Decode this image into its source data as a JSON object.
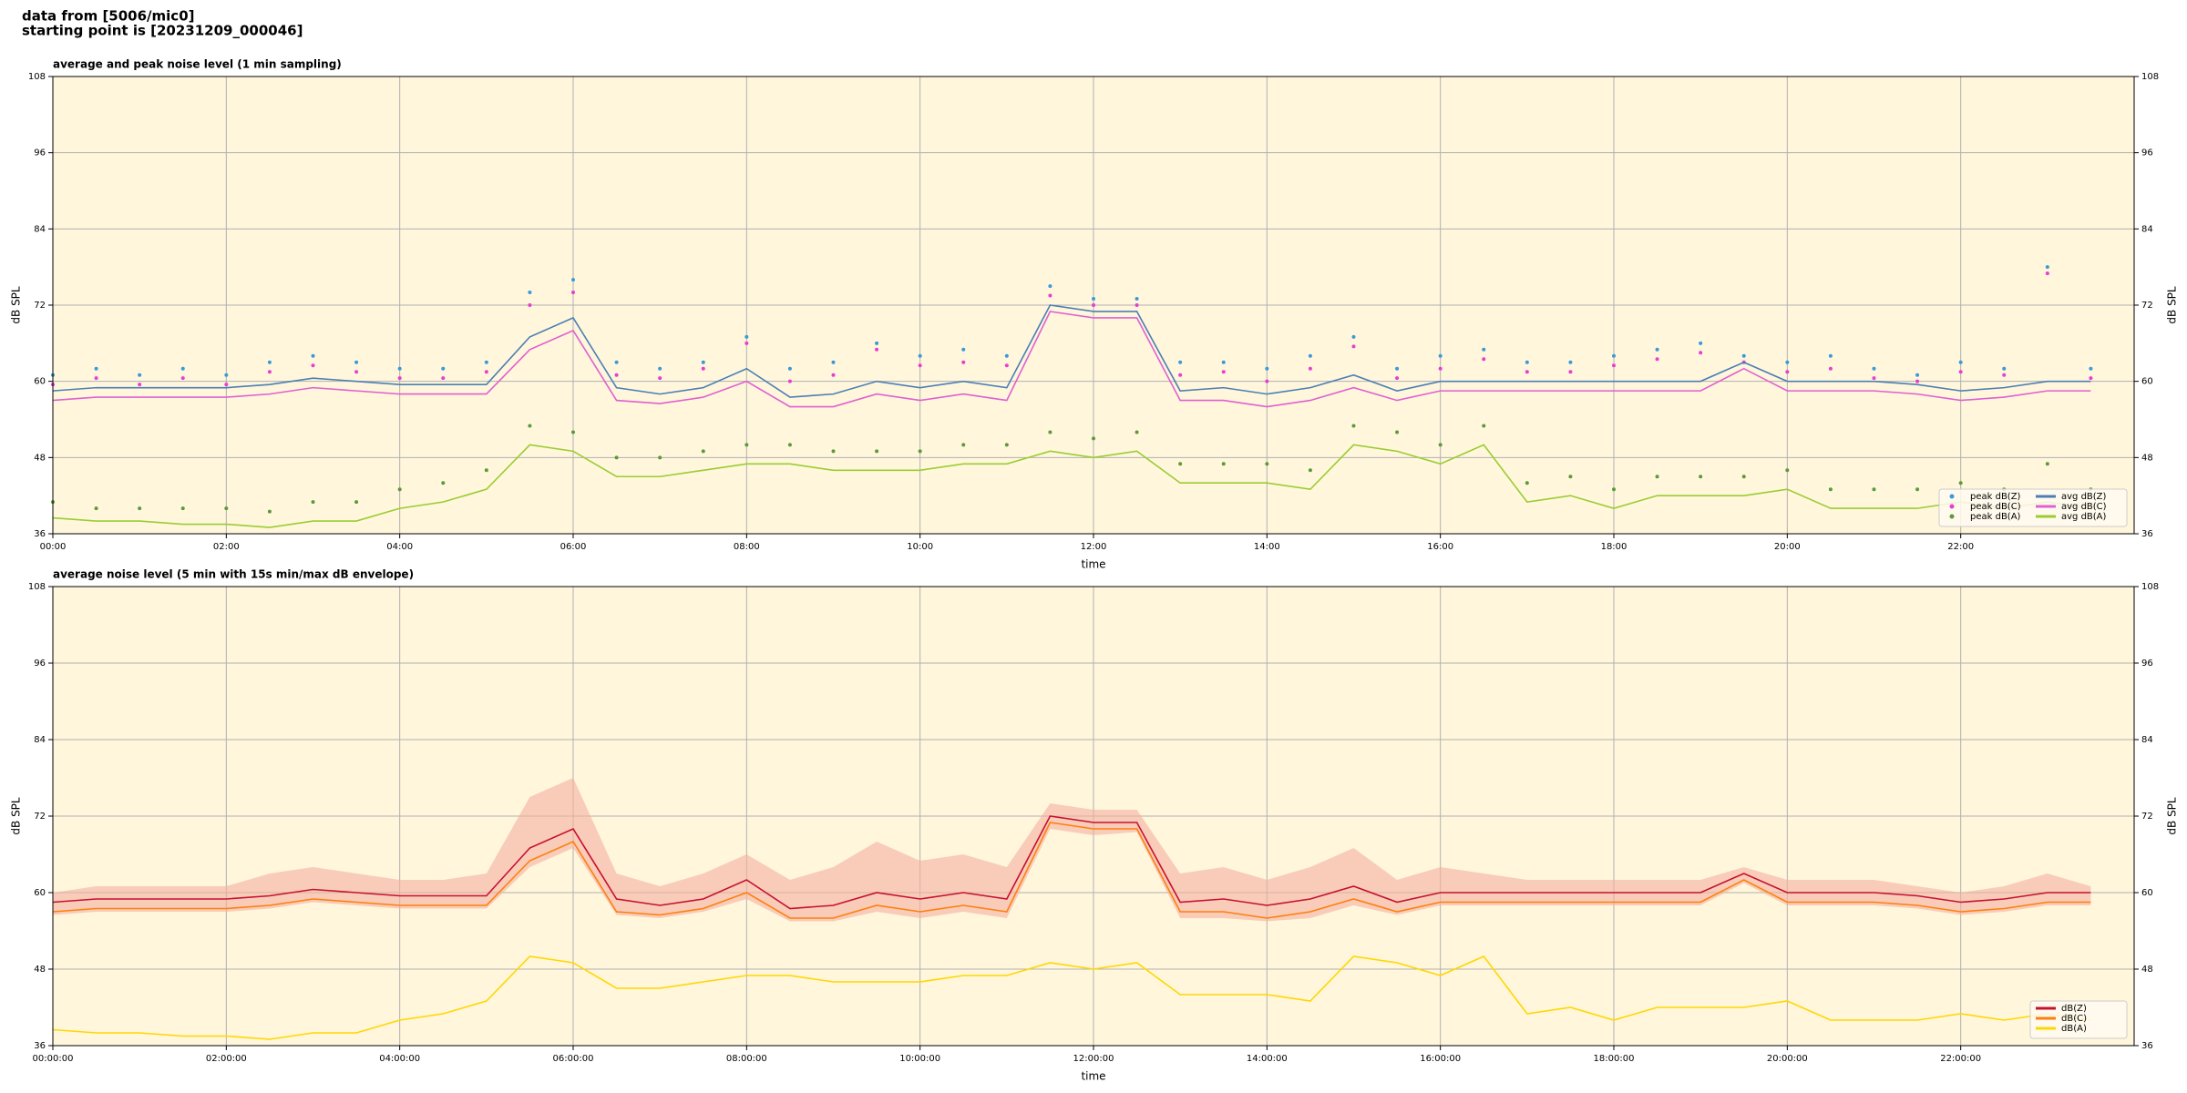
{
  "header": {
    "line1": "data from [5006/mic0]",
    "line2": "starting point is [20231209_000046]"
  },
  "chart_data": [
    {
      "type": "line",
      "title": "average and peak noise level (1 min sampling)",
      "xlabel": "time",
      "ylabel": "dB SPL",
      "x": [
        0,
        0.5,
        1,
        1.5,
        2,
        2.5,
        3,
        3.5,
        4,
        4.5,
        5,
        5.5,
        6,
        6.5,
        7,
        7.5,
        8,
        8.5,
        9,
        9.5,
        10,
        10.5,
        11,
        11.5,
        12,
        12.5,
        13,
        13.5,
        14,
        14.5,
        15,
        15.5,
        16,
        16.5,
        17,
        17.5,
        18,
        18.5,
        19,
        19.5,
        20,
        20.5,
        21,
        21.5,
        22,
        22.5,
        23,
        23.5
      ],
      "xlim": [
        0,
        24
      ],
      "xticks": [
        {
          "value": 0,
          "label": "00:00"
        },
        {
          "value": 2,
          "label": "02:00"
        },
        {
          "value": 4,
          "label": "04:00"
        },
        {
          "value": 6,
          "label": "06:00"
        },
        {
          "value": 8,
          "label": "08:00"
        },
        {
          "value": 10,
          "label": "10:00"
        },
        {
          "value": 12,
          "label": "12:00"
        },
        {
          "value": 14,
          "label": "14:00"
        },
        {
          "value": 16,
          "label": "16:00"
        },
        {
          "value": 18,
          "label": "18:00"
        },
        {
          "value": 20,
          "label": "20:00"
        },
        {
          "value": 22,
          "label": "22:00"
        }
      ],
      "ylim": [
        36,
        108
      ],
      "yticks": [
        36,
        48,
        60,
        72,
        84,
        96,
        108
      ],
      "grid": true,
      "legend": "lower right",
      "series": [
        {
          "name": "peak dB(Z)",
          "kind": "scatter",
          "color": "#3a9ad9",
          "values": [
            61,
            62,
            61,
            62,
            61,
            63,
            64,
            63,
            62,
            62,
            63,
            74,
            76,
            63,
            62,
            63,
            67,
            62,
            63,
            66,
            64,
            65,
            64,
            75,
            73,
            73,
            63,
            63,
            62,
            64,
            67,
            62,
            64,
            65,
            63,
            63,
            64,
            65,
            66,
            64,
            63,
            64,
            62,
            61,
            63,
            62,
            78,
            62
          ]
        },
        {
          "name": "peak dB(C)",
          "kind": "scatter",
          "color": "#e83ecf",
          "values": [
            59.5,
            60.5,
            59.5,
            60.5,
            59.5,
            61.5,
            62.5,
            61.5,
            60.5,
            60.5,
            61.5,
            72,
            74,
            61,
            60.5,
            62,
            66,
            60,
            61,
            65,
            62.5,
            63,
            62.5,
            73.5,
            72,
            72,
            61,
            61.5,
            60,
            62,
            65.5,
            60.5,
            62,
            63.5,
            61.5,
            61.5,
            62.5,
            63.5,
            64.5,
            63,
            61.5,
            62,
            60.5,
            60,
            61.5,
            61,
            77,
            60.5
          ]
        },
        {
          "name": "peak dB(A)",
          "kind": "scatter",
          "color": "#5a9a3a",
          "values": [
            41,
            40,
            40,
            40,
            40,
            39.5,
            41,
            41,
            43,
            44,
            46,
            53,
            52,
            48,
            48,
            49,
            50,
            50,
            49,
            49,
            49,
            50,
            50,
            52,
            51,
            52,
            47,
            47,
            47,
            46,
            53,
            52,
            50,
            53,
            44,
            45,
            43,
            45,
            45,
            45,
            46,
            43,
            43,
            43,
            44,
            43,
            47,
            43
          ]
        },
        {
          "name": "avg dB(Z)",
          "kind": "line",
          "color": "#4a7fb5",
          "values": [
            58.5,
            59,
            59,
            59,
            59,
            59.5,
            60.5,
            60,
            59.5,
            59.5,
            59.5,
            67,
            70,
            59,
            58,
            59,
            62,
            57.5,
            58,
            60,
            59,
            60,
            59,
            72,
            71,
            71,
            58.5,
            59,
            58,
            59,
            61,
            58.5,
            60,
            60,
            60,
            60,
            60,
            60,
            60,
            63,
            60,
            60,
            60,
            59.5,
            58.5,
            59,
            60,
            60
          ]
        },
        {
          "name": "avg dB(C)",
          "kind": "line",
          "color": "#e060d0",
          "values": [
            57,
            57.5,
            57.5,
            57.5,
            57.5,
            58,
            59,
            58.5,
            58,
            58,
            58,
            65,
            68,
            57,
            56.5,
            57.5,
            60,
            56,
            56,
            58,
            57,
            58,
            57,
            71,
            70,
            70,
            57,
            57,
            56,
            57,
            59,
            57,
            58.5,
            58.5,
            58.5,
            58.5,
            58.5,
            58.5,
            58.5,
            62,
            58.5,
            58.5,
            58.5,
            58,
            57,
            57.5,
            58.5,
            58.5
          ]
        },
        {
          "name": "avg dB(A)",
          "kind": "line",
          "color": "#9acd32",
          "values": [
            38.5,
            38,
            38,
            37.5,
            37.5,
            37,
            38,
            38,
            40,
            41,
            43,
            50,
            49,
            45,
            45,
            46,
            47,
            47,
            46,
            46,
            46,
            47,
            47,
            49,
            48,
            49,
            44,
            44,
            44,
            43,
            50,
            49,
            47,
            50,
            41,
            42,
            40,
            42,
            42,
            42,
            43,
            40,
            40,
            40,
            41,
            40,
            41,
            40
          ]
        }
      ]
    },
    {
      "type": "line",
      "title": "average noise level (5 min with 15s min/max dB envelope)",
      "xlabel": "time",
      "ylabel": "dB SPL",
      "x": [
        0,
        0.5,
        1,
        1.5,
        2,
        2.5,
        3,
        3.5,
        4,
        4.5,
        5,
        5.5,
        6,
        6.5,
        7,
        7.5,
        8,
        8.5,
        9,
        9.5,
        10,
        10.5,
        11,
        11.5,
        12,
        12.5,
        13,
        13.5,
        14,
        14.5,
        15,
        15.5,
        16,
        16.5,
        17,
        17.5,
        18,
        18.5,
        19,
        19.5,
        20,
        20.5,
        21,
        21.5,
        22,
        22.5,
        23,
        23.5
      ],
      "xlim": [
        0,
        24
      ],
      "xticks": [
        {
          "value": 0,
          "label": "00:00:00"
        },
        {
          "value": 2,
          "label": "02:00:00"
        },
        {
          "value": 4,
          "label": "04:00:00"
        },
        {
          "value": 6,
          "label": "06:00:00"
        },
        {
          "value": 8,
          "label": "08:00:00"
        },
        {
          "value": 10,
          "label": "10:00:00"
        },
        {
          "value": 12,
          "label": "12:00:00"
        },
        {
          "value": 14,
          "label": "14:00:00"
        },
        {
          "value": 16,
          "label": "16:00:00"
        },
        {
          "value": 18,
          "label": "18:00:00"
        },
        {
          "value": 20,
          "label": "20:00:00"
        },
        {
          "value": 22,
          "label": "22:00:00"
        }
      ],
      "ylim": [
        36,
        108
      ],
      "yticks": [
        36,
        48,
        60,
        72,
        84,
        96,
        108
      ],
      "grid": true,
      "legend": "lower right",
      "band": {
        "color": "#f4b0a0",
        "upper": [
          60,
          61,
          61,
          61,
          61,
          63,
          64,
          63,
          62,
          62,
          63,
          75,
          78,
          63,
          61,
          63,
          66,
          62,
          64,
          68,
          65,
          66,
          64,
          74,
          73,
          73,
          63,
          64,
          62,
          64,
          67,
          62,
          64,
          63,
          62,
          62,
          62,
          62,
          62,
          64,
          62,
          62,
          62,
          61,
          60,
          61,
          63,
          61
        ],
        "lower": [
          56.5,
          57,
          57,
          57,
          57,
          57.5,
          58.5,
          58,
          57.5,
          57.5,
          57.5,
          64,
          67,
          56.5,
          56,
          57,
          59,
          55.5,
          55.5,
          57,
          56,
          57,
          56,
          70,
          69,
          69.5,
          56,
          56,
          55.5,
          56,
          58,
          56.5,
          58,
          58,
          58,
          58,
          58,
          58,
          58,
          61.5,
          58,
          58,
          58,
          57.5,
          56.5,
          57,
          58,
          58
        ]
      },
      "series": [
        {
          "name": "dB(Z)",
          "kind": "line",
          "color": "#c8102e",
          "values": [
            58.5,
            59,
            59,
            59,
            59,
            59.5,
            60.5,
            60,
            59.5,
            59.5,
            59.5,
            67,
            70,
            59,
            58,
            59,
            62,
            57.5,
            58,
            60,
            59,
            60,
            59,
            72,
            71,
            71,
            58.5,
            59,
            58,
            59,
            61,
            58.5,
            60,
            60,
            60,
            60,
            60,
            60,
            60,
            63,
            60,
            60,
            60,
            59.5,
            58.5,
            59,
            60,
            60
          ]
        },
        {
          "name": "dB(C)",
          "kind": "line",
          "color": "#ff7f0e",
          "values": [
            57,
            57.5,
            57.5,
            57.5,
            57.5,
            58,
            59,
            58.5,
            58,
            58,
            58,
            65,
            68,
            57,
            56.5,
            57.5,
            60,
            56,
            56,
            58,
            57,
            58,
            57,
            71,
            70,
            70,
            57,
            57,
            56,
            57,
            59,
            57,
            58.5,
            58.5,
            58.5,
            58.5,
            58.5,
            58.5,
            58.5,
            62,
            58.5,
            58.5,
            58.5,
            58,
            57,
            57.5,
            58.5,
            58.5
          ]
        },
        {
          "name": "dB(A)",
          "kind": "line",
          "color": "#ffd700",
          "values": [
            38.5,
            38,
            38,
            37.5,
            37.5,
            37,
            38,
            38,
            40,
            41,
            43,
            50,
            49,
            45,
            45,
            46,
            47,
            47,
            46,
            46,
            46,
            47,
            47,
            49,
            48,
            49,
            44,
            44,
            44,
            43,
            50,
            49,
            47,
            50,
            41,
            42,
            40,
            42,
            42,
            42,
            43,
            40,
            40,
            40,
            41,
            40,
            41,
            40
          ]
        }
      ]
    }
  ]
}
